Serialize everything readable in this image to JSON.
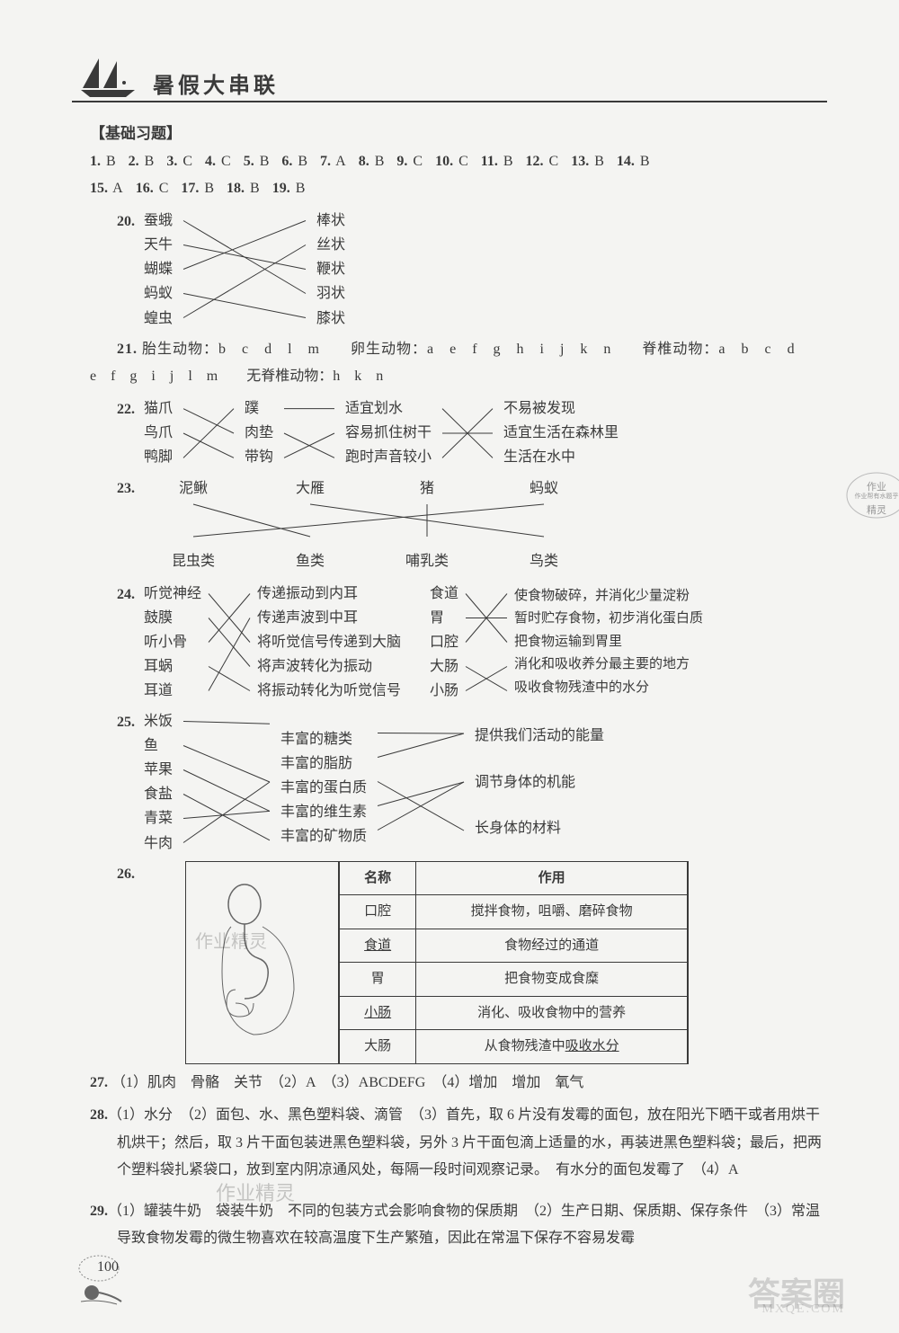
{
  "header": {
    "title": "暑假大串联"
  },
  "section": {
    "label": "【基础习题】"
  },
  "mcq": [
    {
      "n": "1.",
      "a": "B"
    },
    {
      "n": "2.",
      "a": "B"
    },
    {
      "n": "3.",
      "a": "C"
    },
    {
      "n": "4.",
      "a": "C"
    },
    {
      "n": "5.",
      "a": "B"
    },
    {
      "n": "6.",
      "a": "B"
    },
    {
      "n": "7.",
      "a": "A"
    },
    {
      "n": "8.",
      "a": "B"
    },
    {
      "n": "9.",
      "a": "C"
    },
    {
      "n": "10.",
      "a": "C"
    },
    {
      "n": "11.",
      "a": "B"
    },
    {
      "n": "12.",
      "a": "C"
    },
    {
      "n": "13.",
      "a": "B"
    },
    {
      "n": "14.",
      "a": "B"
    }
  ],
  "mcq2": [
    {
      "n": "15.",
      "a": "A"
    },
    {
      "n": "16.",
      "a": "C"
    },
    {
      "n": "17.",
      "a": "B"
    },
    {
      "n": "18.",
      "a": "B"
    },
    {
      "n": "19.",
      "a": "B"
    }
  ],
  "q20": {
    "num": "20.",
    "left": [
      "蚕蛾",
      "天牛",
      "蝴蝶",
      "蚂蚁",
      "蝗虫"
    ],
    "right": [
      "棒状",
      "丝状",
      "鞭状",
      "羽状",
      "膝状"
    ],
    "edges": [
      [
        0,
        3
      ],
      [
        1,
        2
      ],
      [
        2,
        0
      ],
      [
        3,
        4
      ],
      [
        4,
        1
      ]
    ]
  },
  "q21": {
    "num": "21.",
    "text1": "胎生动物：b　c　d　l　m　　卵生动物：a　e　f　g　h　i　j　k　n　　脊椎动物：a　b　c　d",
    "text2": "e　f　g　i　j　l　m　　无脊椎动物：h　k　n"
  },
  "q22": {
    "num": "22.",
    "c1": [
      "猫爪",
      "鸟爪",
      "鸭脚"
    ],
    "c2": [
      "蹼",
      "肉垫",
      "带钩"
    ],
    "c3": [
      "适宜划水",
      "容易抓住树干",
      "跑时声音较小"
    ],
    "c4": [
      "不易被发现",
      "适宜生活在森林里",
      "生活在水中"
    ],
    "e12": [
      [
        0,
        1
      ],
      [
        1,
        2
      ],
      [
        2,
        0
      ]
    ],
    "e23": [
      [
        0,
        0
      ],
      [
        1,
        2
      ],
      [
        2,
        1
      ]
    ],
    "e34": [
      [
        0,
        2
      ],
      [
        1,
        1
      ],
      [
        2,
        0
      ]
    ]
  },
  "q23": {
    "num": "23.",
    "top": [
      "泥鳅",
      "大雁",
      "猪",
      "蚂蚁"
    ],
    "bot": [
      "昆虫类",
      "鱼类",
      "哺乳类",
      "鸟类"
    ],
    "edges": [
      [
        0,
        1
      ],
      [
        1,
        3
      ],
      [
        2,
        2
      ],
      [
        3,
        0
      ]
    ],
    "stamp": [
      "作业",
      "作业帮有水题乎",
      "精灵"
    ]
  },
  "q24": {
    "num": "24.",
    "l1": [
      "听觉神经",
      "鼓膜",
      "听小骨",
      "耳蜗",
      "耳道"
    ],
    "l2": [
      "传递振动到内耳",
      "传递声波到中耳",
      "将听觉信号传递到大脑",
      "将声波转化为振动",
      "将振动转化为听觉信号"
    ],
    "e12": [
      [
        0,
        2
      ],
      [
        1,
        3
      ],
      [
        2,
        0
      ],
      [
        3,
        4
      ],
      [
        4,
        1
      ]
    ],
    "r1": [
      "食道",
      "胃",
      "口腔",
      "大肠",
      "小肠"
    ],
    "r2": [
      "使食物破碎，并消化少量淀粉",
      "暂时贮存食物，初步消化蛋白质",
      "把食物运输到胃里",
      "消化和吸收养分最主要的地方",
      "吸收食物残渣中的水分"
    ],
    "e34": [
      [
        0,
        2
      ],
      [
        1,
        1
      ],
      [
        2,
        0
      ],
      [
        3,
        4
      ],
      [
        4,
        3
      ]
    ]
  },
  "q25": {
    "num": "25.",
    "c1": [
      "米饭",
      "鱼",
      "苹果",
      "食盐",
      "青菜",
      "牛肉"
    ],
    "c2": [
      "丰富的糖类",
      "丰富的脂肪",
      "丰富的蛋白质",
      "丰富的维生素",
      "丰富的矿物质"
    ],
    "c3": [
      "提供我们活动的能量",
      "调节身体的机能",
      "长身体的材料"
    ],
    "e12": [
      [
        0,
        0
      ],
      [
        1,
        2
      ],
      [
        2,
        3
      ],
      [
        3,
        4
      ],
      [
        4,
        3
      ],
      [
        5,
        2
      ]
    ],
    "e23": [
      [
        0,
        0
      ],
      [
        1,
        0
      ],
      [
        2,
        2
      ],
      [
        3,
        1
      ],
      [
        4,
        1
      ]
    ]
  },
  "q26": {
    "num": "26.",
    "watermark": "作业精灵",
    "headers": [
      "名称",
      "作用"
    ],
    "rows": [
      [
        "口腔",
        "搅拌食物，咀嚼、磨碎食物"
      ],
      [
        "食道",
        "食物经过的通道"
      ],
      [
        "胃",
        "把食物变成食糜"
      ],
      [
        "小肠",
        "消化、吸收食物中的营养"
      ],
      [
        "大肠",
        "从食物残渣中吸收水分"
      ]
    ],
    "underlines": [
      [
        1,
        0
      ],
      [
        3,
        0
      ],
      [
        4,
        1,
        "吸收水分"
      ]
    ]
  },
  "q27": {
    "num": "27.",
    "text": "（1）肌肉　骨骼　关节　（2）A　（3）ABCDEFG　（4）增加　增加　氧气"
  },
  "q28": {
    "num": "28.",
    "text": "（1）水分　（2）面包、水、黑色塑料袋、滴管　（3）首先，取 6 片没有发霉的面包，放在阳光下晒干或者用烘干机烘干；然后，取 3 片干面包装进黑色塑料袋，另外 3 片干面包滴上适量的水，再装进黑色塑料袋；最后，把两个塑料袋扎紧袋口，放到室内阴凉通风处，每隔一段时间观察记录。　有水分的面包发霉了　（4）A"
  },
  "q29": {
    "num": "29.",
    "text": "（1）罐装牛奶　袋装牛奶　不同的包装方式会影响食物的保质期　（2）生产日期、保质期、保存条件　（3）常温　导致食物发霉的微生物喜欢在较高温度下生产繁殖，因此在常温下保存不容易发霉"
  },
  "footer": {
    "pageNum": "100",
    "logo": "答案圈",
    "url": "MXQE.COM"
  },
  "wm2": "作业精灵"
}
